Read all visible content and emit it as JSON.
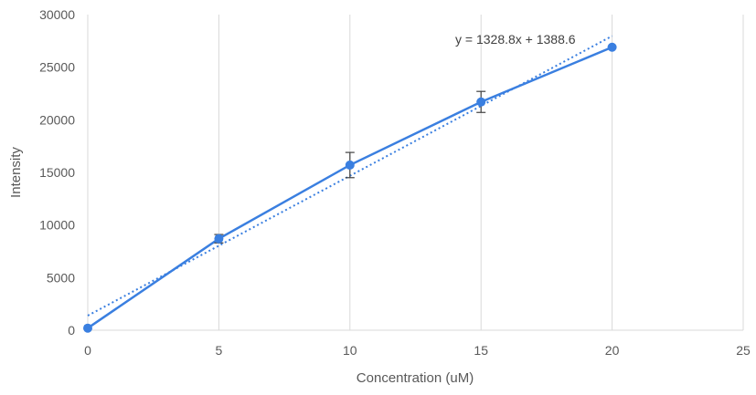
{
  "chart_data": {
    "type": "scatter",
    "xlabel": "Concentration (uM)",
    "ylabel": "Intensity",
    "xlim": [
      0,
      25
    ],
    "ylim": [
      0,
      30000
    ],
    "x_ticks": [
      "0",
      "5",
      "10",
      "15",
      "20",
      "25"
    ],
    "y_ticks": [
      "0",
      "5000",
      "10000",
      "15000",
      "20000",
      "25000",
      "30000"
    ],
    "grid": "vertical",
    "colors": {
      "series": "#3a7fe0",
      "grid": "#d9d9d9",
      "error_bar": "#404040"
    },
    "series": [
      {
        "x": [
          0,
          5,
          10,
          15,
          20
        ],
        "y": [
          200,
          8700,
          15700,
          21700,
          26900
        ],
        "error": [
          0,
          400,
          1200,
          1000,
          0
        ]
      }
    ],
    "trendline": {
      "type": "linear",
      "slope": 1328.8,
      "intercept": 1388.6,
      "equation": "y = 1328.8x + 1388.6",
      "style": "dotted"
    }
  }
}
